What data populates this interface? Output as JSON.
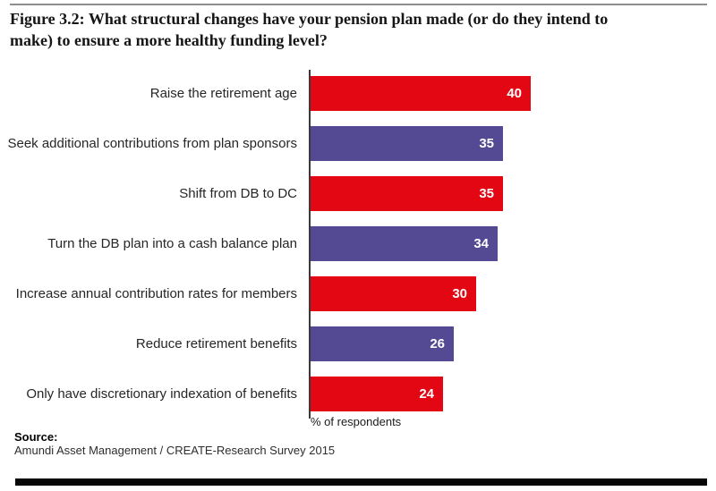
{
  "header": {
    "title_lines": [
      "Figure 3.2: What structural changes have your pension plan made (or do they intend to",
      "make) to ensure a more healthy funding level?"
    ]
  },
  "chart_data": {
    "type": "bar",
    "orientation": "horizontal",
    "categories": [
      "Raise the retirement age",
      "Seek additional contributions from plan sponsors",
      "Shift from DB to DC",
      "Turn the DB plan into a cash balance plan",
      "Increase annual contribution rates for members",
      "Reduce retirement benefits",
      "Only have discretionary indexation of benefits"
    ],
    "values": [
      40,
      35,
      35,
      34,
      30,
      26,
      24
    ],
    "bar_colors": [
      "red",
      "purple",
      "red",
      "purple",
      "red",
      "purple",
      "red"
    ],
    "palette": {
      "red": "#e30613",
      "purple": "#544a94"
    },
    "xlabel": "% of respondents",
    "xlim": [
      0,
      40
    ],
    "grid": false,
    "legend": "none",
    "value_labels": "inside-right"
  },
  "source": {
    "label": "Source:",
    "text": "Amundi Asset Management / CREATE-Research Survey 2015"
  }
}
